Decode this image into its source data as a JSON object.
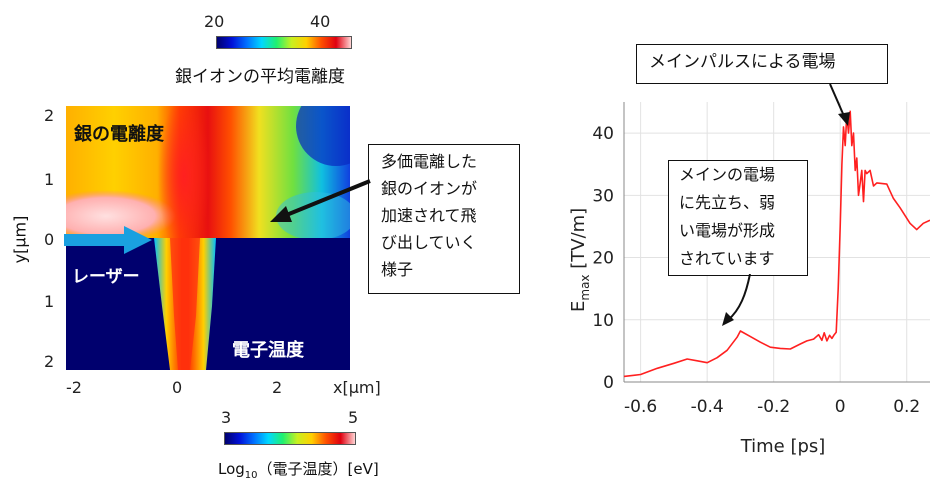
{
  "left_panel": {
    "colorbar_top": {
      "min_label": "20",
      "max_label": "40",
      "title": "銀イオンの平均電離度"
    },
    "colorbar_bottom": {
      "min_label": "3",
      "max_label": "5",
      "title_prefix": "Log",
      "title_sub": "10",
      "title_rest": "（電子温度）[eV]"
    },
    "region_labels": {
      "upper": "銀の電離度",
      "lower": "電子温度",
      "laser": "レーザー"
    },
    "y_axis_label": "y[μm]",
    "y_ticks": [
      "2",
      "1",
      "0",
      "1",
      "2"
    ],
    "x_ticks": [
      "-2",
      "0",
      "2"
    ],
    "x_axis_label": "x[μm]",
    "annotation_lines": [
      "多価電離した",
      "銀のイオンが",
      "加速されて飛",
      "び出していく",
      "様子"
    ],
    "colors": {
      "background_dark_blue": "#00006e",
      "hot_red": "#e00010",
      "laser_arrow": "#1aa0e0",
      "annotation_arrow": "#111111"
    }
  },
  "chart_data": {
    "type": "line",
    "x_label": "Time [ps]",
    "y_label_main": "E",
    "y_label_sub": "max",
    "y_label_unit": " [TV/m]",
    "xlim": [
      -0.65,
      0.27
    ],
    "ylim": [
      0,
      45
    ],
    "x_ticks": [
      -0.6,
      -0.4,
      -0.2,
      0,
      0.2
    ],
    "y_ticks": [
      0,
      10,
      20,
      30,
      40
    ],
    "x_tick_labels": [
      "-0.6",
      "-0.4",
      "-0.2",
      "0",
      "0.2"
    ],
    "y_tick_labels": [
      "0",
      "10",
      "20",
      "30",
      "40"
    ],
    "grid": true,
    "series": [
      {
        "color": "#ff2020",
        "points": [
          [
            -0.65,
            0.9
          ],
          [
            -0.6,
            1.2
          ],
          [
            -0.55,
            2.2
          ],
          [
            -0.5,
            3.0
          ],
          [
            -0.46,
            3.7
          ],
          [
            -0.43,
            3.4
          ],
          [
            -0.4,
            3.1
          ],
          [
            -0.37,
            3.9
          ],
          [
            -0.34,
            5.1
          ],
          [
            -0.31,
            7.2
          ],
          [
            -0.3,
            8.2
          ],
          [
            -0.27,
            7.3
          ],
          [
            -0.24,
            6.4
          ],
          [
            -0.21,
            5.6
          ],
          [
            -0.18,
            5.4
          ],
          [
            -0.15,
            5.3
          ],
          [
            -0.12,
            6.1
          ],
          [
            -0.1,
            6.6
          ],
          [
            -0.08,
            6.9
          ],
          [
            -0.065,
            7.6
          ],
          [
            -0.055,
            6.7
          ],
          [
            -0.048,
            7.9
          ],
          [
            -0.04,
            6.6
          ],
          [
            -0.032,
            7.5
          ],
          [
            -0.025,
            7.0
          ],
          [
            -0.018,
            7.6
          ],
          [
            -0.012,
            8.0
          ],
          [
            -0.006,
            15
          ],
          [
            0,
            25
          ],
          [
            0.005,
            35
          ],
          [
            0.01,
            41
          ],
          [
            0.015,
            38
          ],
          [
            0.02,
            43
          ],
          [
            0.025,
            40
          ],
          [
            0.03,
            43.5
          ],
          [
            0.035,
            38
          ],
          [
            0.04,
            40
          ],
          [
            0.045,
            34
          ],
          [
            0.05,
            36
          ],
          [
            0.055,
            30
          ],
          [
            0.06,
            32
          ],
          [
            0.065,
            34
          ],
          [
            0.07,
            29
          ],
          [
            0.075,
            34
          ],
          [
            0.08,
            33.5
          ],
          [
            0.09,
            34
          ],
          [
            0.1,
            31.5
          ],
          [
            0.11,
            32
          ],
          [
            0.14,
            31.8
          ],
          [
            0.16,
            29.5
          ],
          [
            0.18,
            28
          ],
          [
            0.21,
            25.5
          ],
          [
            0.23,
            24.5
          ],
          [
            0.25,
            25.5
          ],
          [
            0.27,
            26
          ]
        ]
      }
    ]
  },
  "right_panel": {
    "callout_main": "メインパルスによる電場",
    "callout_pre_lines": [
      "メインの電場",
      "に先立ち、弱",
      "い電場が形成",
      "されています"
    ]
  }
}
